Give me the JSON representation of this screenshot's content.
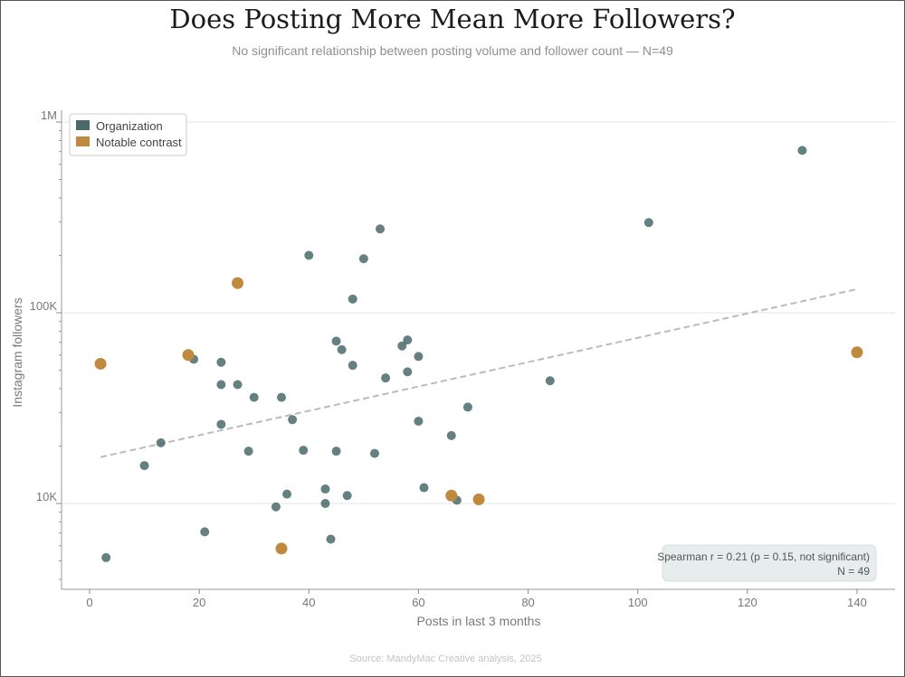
{
  "title": "Does Posting More Mean More Followers?",
  "subtitle": "No significant relationship between posting volume and follower count — N=49",
  "source": "Source: MandyMac Creative analysis, 2025",
  "annotation": {
    "line1": "Spearman r = 0.21  (p = 0.15, not significant)",
    "line2": "N = 49"
  },
  "colors": {
    "organization": "#4a6a6a",
    "notable": "#c08a3e",
    "trend": "#bbbbbb"
  },
  "chart_data": {
    "type": "scatter",
    "xlabel": "Posts in last 3 months",
    "ylabel": "Instagram followers",
    "xlim": [
      -5,
      147
    ],
    "ylim": [
      4000,
      1200000
    ],
    "yscale": "log",
    "grid": "horizontal",
    "legend_position": "top-left",
    "x_ticks": [
      0,
      20,
      40,
      60,
      80,
      100,
      120,
      140
    ],
    "x_tick_labels": [
      "0",
      "20",
      "40",
      "60",
      "80",
      "100",
      "120",
      "140"
    ],
    "y_ticks": [
      10000,
      100000,
      1000000
    ],
    "y_tick_labels": [
      "10K",
      "100K",
      "1M"
    ],
    "trend_line": {
      "style": "dashed",
      "x": [
        2,
        140
      ],
      "y": [
        17500,
        133000
      ]
    },
    "series": [
      {
        "name": "Organization",
        "points": [
          {
            "x": 3,
            "y": 5200
          },
          {
            "x": 10,
            "y": 15800
          },
          {
            "x": 13,
            "y": 20800
          },
          {
            "x": 19,
            "y": 57000
          },
          {
            "x": 21,
            "y": 7100
          },
          {
            "x": 24,
            "y": 55000
          },
          {
            "x": 24,
            "y": 42000
          },
          {
            "x": 24,
            "y": 26000
          },
          {
            "x": 27,
            "y": 42000
          },
          {
            "x": 29,
            "y": 18800
          },
          {
            "x": 30,
            "y": 36000
          },
          {
            "x": 34,
            "y": 9600
          },
          {
            "x": 35,
            "y": 36000
          },
          {
            "x": 36,
            "y": 11200
          },
          {
            "x": 37,
            "y": 27500
          },
          {
            "x": 39,
            "y": 19000
          },
          {
            "x": 40,
            "y": 200000
          },
          {
            "x": 43,
            "y": 11900
          },
          {
            "x": 43,
            "y": 10000
          },
          {
            "x": 44,
            "y": 6500
          },
          {
            "x": 45,
            "y": 71000
          },
          {
            "x": 45,
            "y": 18800
          },
          {
            "x": 46,
            "y": 64000
          },
          {
            "x": 47,
            "y": 11000
          },
          {
            "x": 48,
            "y": 118000
          },
          {
            "x": 48,
            "y": 53000
          },
          {
            "x": 50,
            "y": 192000
          },
          {
            "x": 52,
            "y": 18300
          },
          {
            "x": 53,
            "y": 275000
          },
          {
            "x": 54,
            "y": 45500
          },
          {
            "x": 57,
            "y": 67000
          },
          {
            "x": 58,
            "y": 72000
          },
          {
            "x": 58,
            "y": 49000
          },
          {
            "x": 60,
            "y": 59000
          },
          {
            "x": 60,
            "y": 27000
          },
          {
            "x": 61,
            "y": 12100
          },
          {
            "x": 66,
            "y": 22700
          },
          {
            "x": 67,
            "y": 10400
          },
          {
            "x": 69,
            "y": 32000
          },
          {
            "x": 84,
            "y": 44000
          },
          {
            "x": 102,
            "y": 297000
          },
          {
            "x": 130,
            "y": 710000
          }
        ]
      },
      {
        "name": "Notable contrast",
        "points": [
          {
            "x": 2,
            "y": 54000
          },
          {
            "x": 18,
            "y": 60000
          },
          {
            "x": 27,
            "y": 143000
          },
          {
            "x": 35,
            "y": 5800
          },
          {
            "x": 66,
            "y": 11000
          },
          {
            "x": 71,
            "y": 10500
          },
          {
            "x": 140,
            "y": 62000
          }
        ]
      }
    ]
  }
}
